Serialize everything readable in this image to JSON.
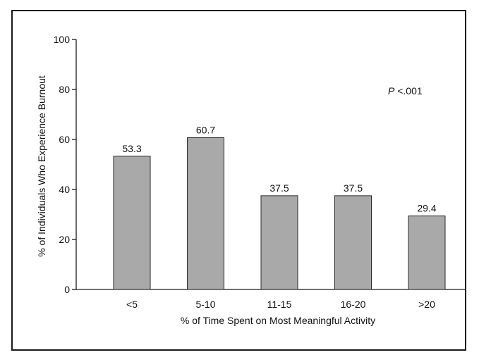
{
  "chart_data": {
    "type": "bar",
    "categories": [
      "<5",
      "5-10",
      "11-15",
      "16-20",
      ">20"
    ],
    "values": [
      53.3,
      60.7,
      37.5,
      37.5,
      29.4
    ],
    "data_labels": [
      "53.3",
      "60.7",
      "37.5",
      "37.5",
      "29.4"
    ],
    "title": "",
    "xlabel": "% of Time Spent on Most Meaningful Activity",
    "ylabel": "% of Individuals Who Experience Burnout",
    "ylim": [
      0,
      100
    ],
    "yticks": [
      0,
      20,
      40,
      60,
      80,
      100
    ],
    "ytick_labels": [
      "0",
      "20",
      "40",
      "60",
      "80",
      "100"
    ],
    "grid": false,
    "bar_color": "#a9a9a9",
    "bar_edge_color": "#2a2a2a",
    "annotation": {
      "italic": "P",
      "rest": " <.001"
    }
  }
}
